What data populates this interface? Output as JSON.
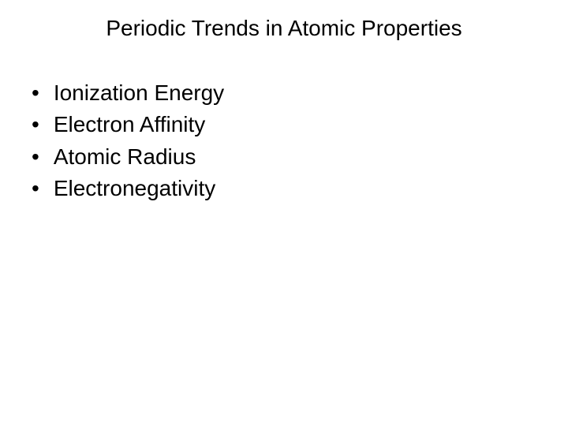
{
  "slide": {
    "title": "Periodic Trends in Atomic Properties",
    "title_fontsize": 28,
    "title_color": "#000000",
    "background_color": "#ffffff",
    "bullets": [
      {
        "marker": "•",
        "text": "Ionization Energy"
      },
      {
        "marker": "•",
        "text": "Electron Affinity"
      },
      {
        "marker": "•",
        "text": "Atomic Radius"
      },
      {
        "marker": "•",
        "text": "Electronegativity"
      }
    ],
    "bullet_fontsize": 28,
    "bullet_color": "#000000"
  }
}
